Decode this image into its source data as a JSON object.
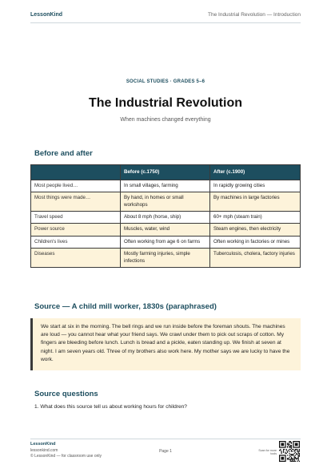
{
  "header": {
    "brand": "LessonKind",
    "running_title": "The Industrial Revolution — Introduction"
  },
  "hero": {
    "kicker": "SOCIAL STUDIES · GRADES 5–6",
    "title": "The Industrial Revolution",
    "subtitle": "When machines changed everything"
  },
  "comparison": {
    "heading": "Before and after",
    "headers": [
      "Before (c.1750)",
      "After (c.1900)"
    ],
    "rows": [
      [
        "Most people lived…",
        "In small villages, farming",
        "In rapidly growing cities"
      ],
      [
        "Most things were made…",
        "By hand, in homes or small workshops",
        "By machines in large factories"
      ],
      [
        "Travel speed",
        "About 8 mph (horse, ship)",
        "60+ mph (steam train)"
      ],
      [
        "Power source",
        "Muscles, water, wind",
        "Steam engines, then electricity"
      ],
      [
        "Children's lives",
        "Often working from age 6 on farms",
        "Often working in factories or mines"
      ],
      [
        "Diseases",
        "Mostly farming injuries, simple infections",
        "Tuberculosis, cholera, factory injuries"
      ]
    ]
  },
  "source": {
    "heading": "Source — A child mill worker, 1830s (paraphrased)",
    "text": "We start at six in the morning. The bell rings and we run inside before the foreman shouts. The machines are loud — you cannot hear what your friend says. We crawl under them to pick out scraps of cotton. My fingers are bleeding before lunch. Lunch is bread and a pickle, eaten standing up. We finish at seven at night. I am seven years old. Three of my brothers also work here. My mother says we are lucky to have the work."
  },
  "questions": {
    "heading": "Source questions",
    "items": [
      "1. What does this source tell us about working hours for children?"
    ]
  },
  "footer": {
    "brand": "LessonKind",
    "url": "lessonkind.com",
    "copyright": "© LessonKind — for classroom use only",
    "page": "Page 1",
    "qr_caption": "Scan for more tools"
  }
}
